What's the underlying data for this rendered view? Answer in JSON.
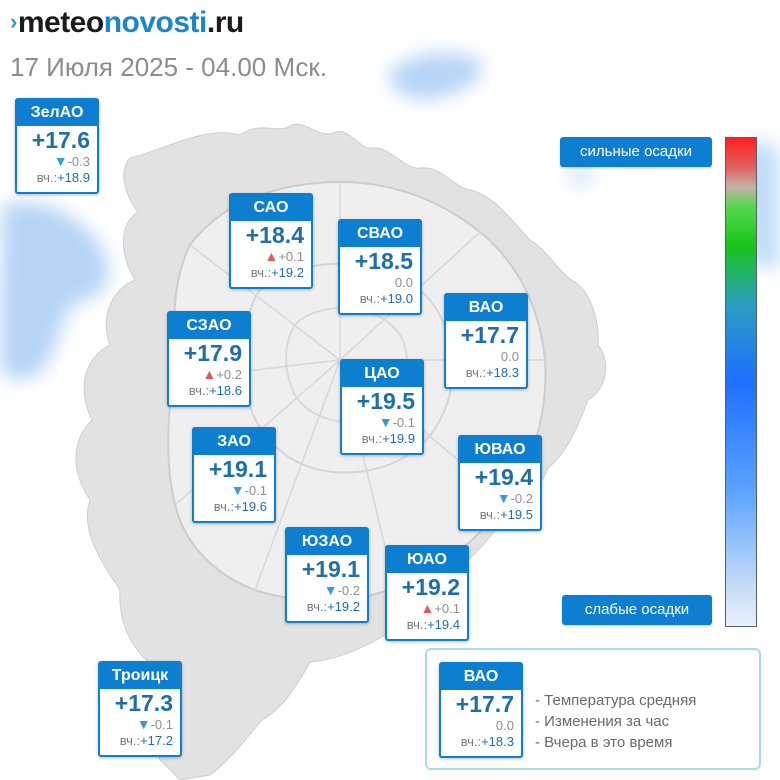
{
  "site": {
    "logo_mark": "›",
    "logo_part1": "meteo",
    "logo_part2": "novosti",
    "logo_part3": ".ru"
  },
  "subtitle": "17 Июля 2025 - 04.00 Мск.",
  "districts": [
    {
      "name": "ЗелАО",
      "temp": "+17.6",
      "arrow": "▼",
      "dir": "down",
      "change": "-0.3",
      "yest_label": "вч.:",
      "yest": "+18.9"
    },
    {
      "name": "САО",
      "temp": "+18.4",
      "arrow": "▲",
      "dir": "up",
      "change": "+0.1",
      "yest_label": "вч.:",
      "yest": "+19.2"
    },
    {
      "name": "СВАО",
      "temp": "+18.5",
      "arrow": "",
      "dir": "none",
      "change": "0.0",
      "yest_label": "вч.:",
      "yest": "+19.0"
    },
    {
      "name": "ВАО",
      "temp": "+17.7",
      "arrow": "",
      "dir": "none",
      "change": "0.0",
      "yest_label": "вч.:",
      "yest": "+18.3"
    },
    {
      "name": "СЗАО",
      "temp": "+17.9",
      "arrow": "▲",
      "dir": "up",
      "change": "+0.2",
      "yest_label": "вч.:",
      "yest": "+18.6"
    },
    {
      "name": "ЦАО",
      "temp": "+19.5",
      "arrow": "▼",
      "dir": "down",
      "change": "-0.1",
      "yest_label": "вч.:",
      "yest": "+19.9"
    },
    {
      "name": "ЗАО",
      "temp": "+19.1",
      "arrow": "▼",
      "dir": "down",
      "change": "-0.1",
      "yest_label": "вч.:",
      "yest": "+19.6"
    },
    {
      "name": "ЮВАО",
      "temp": "+19.4",
      "arrow": "▼",
      "dir": "down",
      "change": "-0.2",
      "yest_label": "вч.:",
      "yest": "+19.5"
    },
    {
      "name": "ЮЗАО",
      "temp": "+19.1",
      "arrow": "▼",
      "dir": "down",
      "change": "-0.2",
      "yest_label": "вч.:",
      "yest": "+19.2"
    },
    {
      "name": "ЮАО",
      "temp": "+19.2",
      "arrow": "▲",
      "dir": "up",
      "change": "+0.1",
      "yest_label": "вч.:",
      "yest": "+19.4"
    },
    {
      "name": "Троицк",
      "temp": "+17.3",
      "arrow": "▼",
      "dir": "down",
      "change": "-0.1",
      "yest_label": "вч.:",
      "yest": "+17.2"
    }
  ],
  "scale": {
    "top_label": "сильные осадки",
    "bottom_label": "слабые осадки"
  },
  "legend": {
    "sample": {
      "name": "ВАО",
      "temp": "+17.7",
      "change": "0.0",
      "yest_label": "вч.:",
      "yest": "+18.3"
    },
    "items": [
      "- Температура средняя",
      "- Изменения за час",
      "- Вчера в это время"
    ]
  }
}
